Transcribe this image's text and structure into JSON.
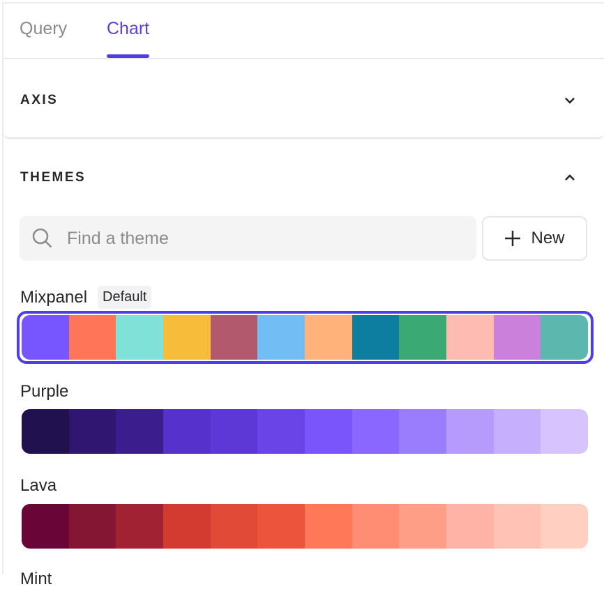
{
  "tabs": [
    {
      "label": "Query",
      "active": false
    },
    {
      "label": "Chart",
      "active": true
    }
  ],
  "accent": "#4f3ee0",
  "axis": {
    "title": "AXIS",
    "icon": "chevron-down-icon"
  },
  "themes": {
    "title": "THEMES",
    "icon": "chevron-up-icon",
    "search": {
      "placeholder": "Find a theme",
      "value": ""
    },
    "new_label": "New",
    "default_badge": "Default",
    "list": [
      {
        "name": "Mixpanel",
        "selected": true,
        "colors": [
          "#7856ff",
          "#ff7557",
          "#80e1d9",
          "#f8bc3b",
          "#b2596e",
          "#72bef4",
          "#ffb27a",
          "#0d7ea0",
          "#3ba974",
          "#febbb2",
          "#cb80dc",
          "#5cb7af"
        ]
      },
      {
        "name": "Purple",
        "colors": [
          "#22114f",
          "#301670",
          "#3b1d8e",
          "#5731cc",
          "#5e38d7",
          "#6a44e6",
          "#7a55fb",
          "#8a68ff",
          "#9a7dfc",
          "#b69bfd",
          "#c6b0fd",
          "#d7c4fe"
        ]
      },
      {
        "name": "Lava",
        "colors": [
          "#6a0537",
          "#841634",
          "#a02233",
          "#d33b31",
          "#e14a37",
          "#ec553c",
          "#ff7858",
          "#ff8d73",
          "#ff9e86",
          "#ffb2a5",
          "#ffc2b4",
          "#ffd0c2"
        ]
      },
      {
        "name": "Mint",
        "colors": []
      }
    ]
  }
}
